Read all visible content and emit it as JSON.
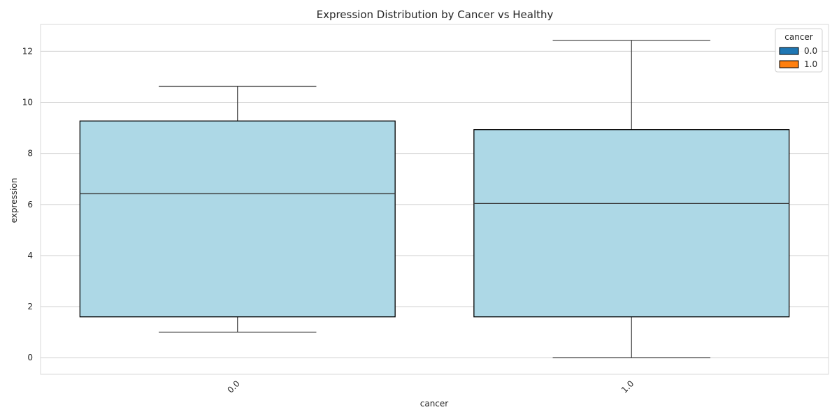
{
  "chart_data": {
    "type": "box",
    "title": "Expression Distribution by Cancer vs Healthy",
    "xlabel": "cancer",
    "ylabel": "expression",
    "categories": [
      "0.0",
      "1.0"
    ],
    "boxes": [
      {
        "category": "0.0",
        "whisker_low": 1.0,
        "q1": 1.6,
        "median": 6.42,
        "q3": 9.27,
        "whisker_high": 10.63
      },
      {
        "category": "1.0",
        "whisker_low": 0.0,
        "q1": 1.6,
        "median": 6.04,
        "q3": 8.93,
        "whisker_high": 12.43
      }
    ],
    "ylim": [
      -0.65,
      13.05
    ],
    "yticks": [
      "0",
      "2",
      "4",
      "6",
      "8",
      "10",
      "12"
    ],
    "grid": "horizontal",
    "box_color": "#add8e6",
    "legend": {
      "title": "cancer",
      "placement": "top-right",
      "entries": [
        {
          "label": "0.0",
          "color": "#1f77b4"
        },
        {
          "label": "1.0",
          "color": "#ff7f0e"
        }
      ]
    }
  }
}
